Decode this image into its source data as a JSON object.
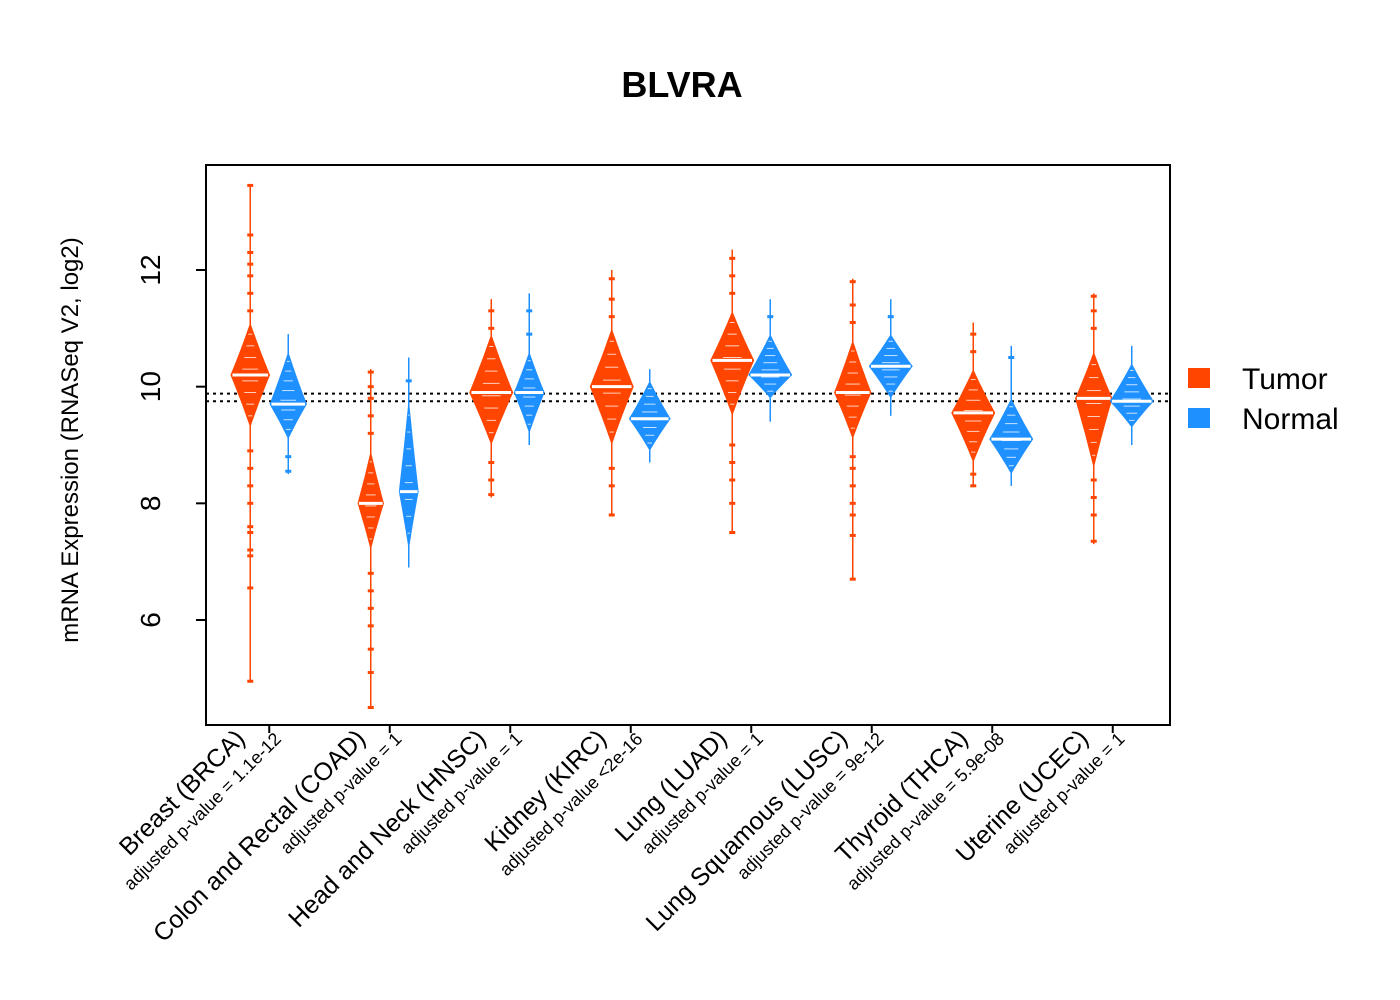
{
  "chart_data": {
    "type": "violin",
    "title": "BLVRA",
    "ylabel": "mRNA Expression (RNASeq V2, log2)",
    "xlabel": "",
    "ylim": [
      4.2,
      13.8
    ],
    "yticks": [
      6,
      8,
      10,
      12
    ],
    "reference_lines": [
      9.75,
      9.88
    ],
    "colors": {
      "Tumor": "#FF4500",
      "Normal": "#1E90FF"
    },
    "legend": [
      {
        "name": "Tumor",
        "color": "#FF4500"
      },
      {
        "name": "Normal",
        "color": "#1E90FF"
      }
    ],
    "categories": [
      {
        "label": "Breast (BRCA)",
        "pvalue": "adjusted p-value = 1.1e-12",
        "tumor": {
          "min": 4.95,
          "max": 13.45,
          "median": 10.2,
          "body_low": 9.3,
          "body_high": 11.1,
          "width": 0.9,
          "outliers": [
            4.95,
            6.55,
            7.1,
            7.2,
            7.5,
            7.6,
            8.0,
            8.3,
            8.6,
            8.9,
            11.3,
            11.6,
            11.9,
            12.1,
            12.3,
            12.6,
            13.45
          ]
        },
        "normal": {
          "min": 8.5,
          "max": 10.9,
          "median": 9.7,
          "body_low": 9.1,
          "body_high": 10.6,
          "width": 0.85,
          "outliers": [
            8.55,
            8.8
          ]
        }
      },
      {
        "label": "Colon and Rectal (COAD)",
        "pvalue": "adjusted p-value = 1",
        "tumor": {
          "min": 4.5,
          "max": 10.3,
          "median": 8.0,
          "body_low": 7.2,
          "body_high": 8.9,
          "width": 0.6,
          "outliers": [
            4.5,
            5.1,
            5.5,
            5.9,
            6.2,
            6.5,
            6.8,
            9.2,
            9.5,
            9.8,
            10.0,
            10.25
          ]
        },
        "normal": {
          "min": 6.9,
          "max": 10.5,
          "median": 8.2,
          "body_low": 7.2,
          "body_high": 9.8,
          "width": 0.45,
          "outliers": [
            10.1
          ]
        }
      },
      {
        "label": "Head and Neck (HNSC)",
        "pvalue": "adjusted p-value = 1",
        "tumor": {
          "min": 8.1,
          "max": 11.5,
          "median": 9.9,
          "body_low": 9.0,
          "body_high": 10.9,
          "width": 1.0,
          "outliers": [
            8.15,
            8.4,
            8.7,
            11.0,
            11.3
          ]
        },
        "normal": {
          "min": 9.0,
          "max": 11.6,
          "median": 9.9,
          "body_low": 9.2,
          "body_high": 10.6,
          "width": 0.7,
          "outliers": [
            10.9,
            11.3
          ]
        }
      },
      {
        "label": "Kidney (KIRC)",
        "pvalue": "adjusted p-value <2e-16",
        "tumor": {
          "min": 7.8,
          "max": 12.0,
          "median": 10.0,
          "body_low": 9.0,
          "body_high": 11.0,
          "width": 1.0,
          "outliers": [
            7.8,
            8.3,
            8.6,
            11.2,
            11.5,
            11.85
          ]
        },
        "normal": {
          "min": 8.7,
          "max": 10.3,
          "median": 9.45,
          "body_low": 8.9,
          "body_high": 10.1,
          "width": 0.95,
          "outliers": []
        }
      },
      {
        "label": "Lung (LUAD)",
        "pvalue": "adjusted p-value = 1",
        "tumor": {
          "min": 7.5,
          "max": 12.35,
          "median": 10.45,
          "body_low": 9.5,
          "body_high": 11.3,
          "width": 1.0,
          "outliers": [
            7.5,
            8.0,
            8.4,
            8.7,
            9.0,
            11.6,
            11.9,
            12.2
          ]
        },
        "normal": {
          "min": 9.4,
          "max": 11.5,
          "median": 10.2,
          "body_low": 9.8,
          "body_high": 10.9,
          "width": 1.0,
          "outliers": [
            11.2
          ]
        }
      },
      {
        "label": "Lung Squamous (LUSC)",
        "pvalue": "adjusted p-value = 9e-12",
        "tumor": {
          "min": 6.7,
          "max": 11.85,
          "median": 9.9,
          "body_low": 9.1,
          "body_high": 10.8,
          "width": 0.85,
          "outliers": [
            6.7,
            7.45,
            7.8,
            8.0,
            8.3,
            8.6,
            8.8,
            11.1,
            11.4,
            11.8
          ]
        },
        "normal": {
          "min": 9.5,
          "max": 11.5,
          "median": 10.35,
          "body_low": 9.8,
          "body_high": 10.9,
          "width": 1.0,
          "outliers": [
            11.2
          ]
        }
      },
      {
        "label": "Thyroid (THCA)",
        "pvalue": "adjusted p-value = 5.9e-08",
        "tumor": {
          "min": 8.3,
          "max": 11.1,
          "median": 9.55,
          "body_low": 8.7,
          "body_high": 10.3,
          "width": 1.0,
          "outliers": [
            8.3,
            8.5,
            10.6,
            10.9
          ]
        },
        "normal": {
          "min": 8.3,
          "max": 10.7,
          "median": 9.1,
          "body_low": 8.5,
          "body_high": 9.8,
          "width": 1.0,
          "outliers": [
            10.5
          ]
        }
      },
      {
        "label": "Uterine (UCEC)",
        "pvalue": "adjusted p-value = 1",
        "tumor": {
          "min": 7.3,
          "max": 11.6,
          "median": 9.8,
          "body_low": 8.6,
          "body_high": 10.6,
          "width": 0.85,
          "outliers": [
            7.35,
            7.8,
            8.1,
            8.4,
            11.0,
            11.3,
            11.55
          ]
        },
        "normal": {
          "min": 9.0,
          "max": 10.7,
          "median": 9.75,
          "body_low": 9.3,
          "body_high": 10.4,
          "width": 1.0,
          "outliers": []
        }
      }
    ]
  }
}
